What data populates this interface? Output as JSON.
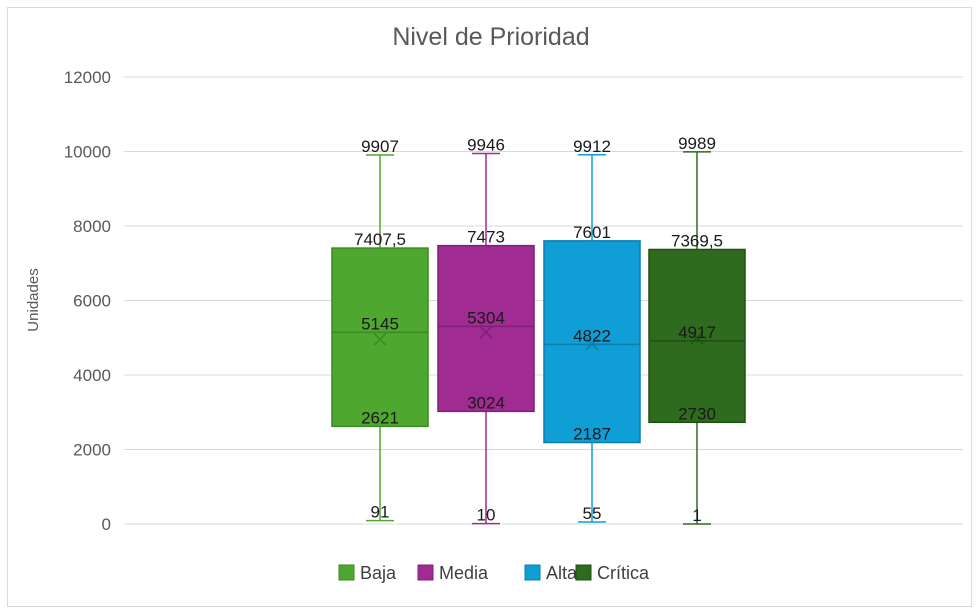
{
  "chart_data": {
    "type": "boxplot",
    "title": "Nivel de Prioridad",
    "xlabel": "",
    "ylabel": "Unidades",
    "ylim": [
      0,
      12000
    ],
    "yticks": [
      0,
      2000,
      4000,
      6000,
      8000,
      10000,
      12000
    ],
    "ytick_labels": [
      "0",
      "2000",
      "4000",
      "6000",
      "8000",
      "10000",
      "12000"
    ],
    "grid": true,
    "legend_position": "bottom",
    "series": [
      {
        "name": "Baja",
        "color": "#4ea72e",
        "border": "#3b8a22",
        "min": 91,
        "q1": 2621,
        "median": 5145,
        "q3": 7407.5,
        "max": 9907,
        "mean": 4960,
        "labels": {
          "min": "91",
          "q1": "2621",
          "median": "5145",
          "q3": "7407,5",
          "max": "9907"
        }
      },
      {
        "name": "Media",
        "color": "#a02b93",
        "border": "#7f1f75",
        "min": 10,
        "q1": 3024,
        "median": 5304,
        "q3": 7473,
        "max": 9946,
        "mean": 5150,
        "labels": {
          "min": "10",
          "q1": "3024",
          "median": "5304",
          "q3": "7473",
          "max": "9946"
        }
      },
      {
        "name": "Alta",
        "color": "#0f9ed5",
        "border": "#0a7fae",
        "min": 55,
        "q1": 2187,
        "median": 4822,
        "q3": 7601,
        "max": 9912,
        "mean": 4830,
        "labels": {
          "min": "55",
          "q1": "2187",
          "median": "4822",
          "q3": "7601",
          "max": "9912"
        }
      },
      {
        "name": "Crítica",
        "color": "#2e6b1e",
        "border": "#1f4f13",
        "min": 1,
        "q1": 2730,
        "median": 4917,
        "q3": 7369.5,
        "max": 9989,
        "mean": 5000,
        "labels": {
          "min": "1",
          "q1": "2730",
          "median": "4917",
          "q3": "7369,5",
          "max": "9989"
        }
      }
    ]
  }
}
